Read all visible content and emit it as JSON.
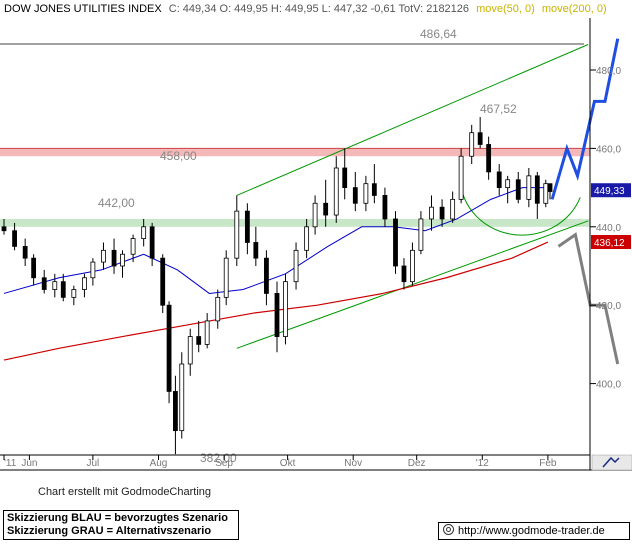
{
  "header": {
    "symbol": "DOW JONES UTILITIES INDEX",
    "quote": "C: 449,34 O: 449,95 H: 449,95 L: 447,32 -0,61 TotV: 2182126",
    "ma_short": "move(50, 0)",
    "ma_long": "move(200, 0)"
  },
  "colors": {
    "candles": "#000000",
    "ma50": "#0000cc",
    "ma200": "#cc0000",
    "channel": "#009900",
    "resistance_zone": "#f5b8b8",
    "support_zone": "#c8e6c8",
    "scenario_blue": "#1e4fe0",
    "scenario_grey": "#808080",
    "price_box": "#1a1aa8",
    "ma200_box": "#cc0000"
  },
  "chart_data": {
    "type": "candlestick",
    "x_labels": [
      "'11",
      "Jun",
      "Jul",
      "Aug",
      "Sep",
      "Okt",
      "Nov",
      "Dez",
      "'12",
      "Feb"
    ],
    "y_ticks": [
      400,
      420,
      440,
      460,
      480
    ],
    "ylim": [
      370,
      495
    ],
    "level_labels": [
      {
        "text": "486,64",
        "value": 486.64
      },
      {
        "text": "467,52",
        "value": 467.52
      },
      {
        "text": "458,00",
        "value": 458.0
      },
      {
        "text": "442,00",
        "value": 442.0
      },
      {
        "text": "382,00",
        "value": 382.0
      }
    ],
    "horizontal_line": 486.64,
    "resistance_zone": [
      458.0,
      460.0
    ],
    "support_zone": [
      440.0,
      442.0
    ],
    "last_price": {
      "text": "449,33",
      "value": 449.33
    },
    "ma200_last": {
      "text": "436,12",
      "value": 436.12
    },
    "channel": {
      "upper": [
        {
          "date": "2011-09-07",
          "y": 448
        },
        {
          "date": "2012-02-20",
          "y": 486.5
        }
      ],
      "lower": [
        {
          "date": "2011-09-07",
          "y": 409
        },
        {
          "date": "2012-02-20",
          "y": 441.5
        }
      ]
    },
    "ma50": [
      {
        "date": "2011-05-20",
        "y": 423
      },
      {
        "date": "2011-06-15",
        "y": 427
      },
      {
        "date": "2011-07-05",
        "y": 429
      },
      {
        "date": "2011-07-25",
        "y": 433
      },
      {
        "date": "2011-08-10",
        "y": 429
      },
      {
        "date": "2011-08-25",
        "y": 423
      },
      {
        "date": "2011-09-10",
        "y": 424
      },
      {
        "date": "2011-09-30",
        "y": 428
      },
      {
        "date": "2011-10-20",
        "y": 435
      },
      {
        "date": "2011-11-05",
        "y": 440
      },
      {
        "date": "2011-11-20",
        "y": 440
      },
      {
        "date": "2011-12-05",
        "y": 439
      },
      {
        "date": "2011-12-20",
        "y": 442
      },
      {
        "date": "2012-01-05",
        "y": 447
      },
      {
        "date": "2012-01-20",
        "y": 450
      },
      {
        "date": "2012-02-01",
        "y": 450
      }
    ],
    "ma200": [
      {
        "date": "2011-05-20",
        "y": 406
      },
      {
        "date": "2011-06-15",
        "y": 409
      },
      {
        "date": "2011-07-15",
        "y": 412
      },
      {
        "date": "2011-08-15",
        "y": 415
      },
      {
        "date": "2011-09-15",
        "y": 418
      },
      {
        "date": "2011-10-15",
        "y": 420
      },
      {
        "date": "2011-11-15",
        "y": 423
      },
      {
        "date": "2011-12-15",
        "y": 427
      },
      {
        "date": "2012-01-15",
        "y": 432
      },
      {
        "date": "2012-02-01",
        "y": 436.1
      }
    ],
    "arc_center": {
      "date": "2012-01-18",
      "y": 446
    },
    "scenario_blue": [
      {
        "date": "2012-02-03",
        "y": 447
      },
      {
        "date": "2012-02-10",
        "y": 460
      },
      {
        "date": "2012-02-15",
        "y": 453
      },
      {
        "date": "2012-02-23",
        "y": 472
      },
      {
        "date": "2012-02-28",
        "y": 472
      },
      {
        "date": "2012-03-05",
        "y": 488
      }
    ],
    "scenario_grey": [
      {
        "date": "2012-02-06",
        "y": 435
      },
      {
        "date": "2012-02-14",
        "y": 438
      },
      {
        "date": "2012-02-21",
        "y": 420
      },
      {
        "date": "2012-02-28",
        "y": 420
      },
      {
        "date": "2012-03-05",
        "y": 405
      }
    ],
    "candles": [
      {
        "date": "2011-05-20",
        "o": 440,
        "h": 442,
        "l": 438,
        "c": 439
      },
      {
        "date": "2011-05-25",
        "o": 439,
        "h": 441,
        "l": 434,
        "c": 435
      },
      {
        "date": "2011-05-30",
        "o": 435,
        "h": 437,
        "l": 430,
        "c": 432
      },
      {
        "date": "2011-06-03",
        "o": 432,
        "h": 433,
        "l": 425,
        "c": 427
      },
      {
        "date": "2011-06-08",
        "o": 427,
        "h": 429,
        "l": 423,
        "c": 424
      },
      {
        "date": "2011-06-13",
        "o": 424,
        "h": 428,
        "l": 422,
        "c": 426
      },
      {
        "date": "2011-06-17",
        "o": 426,
        "h": 428,
        "l": 421,
        "c": 422
      },
      {
        "date": "2011-06-22",
        "o": 422,
        "h": 425,
        "l": 420,
        "c": 424
      },
      {
        "date": "2011-06-27",
        "o": 424,
        "h": 428,
        "l": 422,
        "c": 427
      },
      {
        "date": "2011-07-01",
        "o": 427,
        "h": 432,
        "l": 425,
        "c": 431
      },
      {
        "date": "2011-07-06",
        "o": 431,
        "h": 436,
        "l": 429,
        "c": 434
      },
      {
        "date": "2011-07-11",
        "o": 434,
        "h": 437,
        "l": 428,
        "c": 430
      },
      {
        "date": "2011-07-15",
        "o": 430,
        "h": 434,
        "l": 427,
        "c": 433
      },
      {
        "date": "2011-07-20",
        "o": 433,
        "h": 438,
        "l": 431,
        "c": 437
      },
      {
        "date": "2011-07-25",
        "o": 437,
        "h": 442,
        "l": 435,
        "c": 440
      },
      {
        "date": "2011-07-29",
        "o": 440,
        "h": 441,
        "l": 430,
        "c": 432
      },
      {
        "date": "2011-08-03",
        "o": 432,
        "h": 433,
        "l": 418,
        "c": 420
      },
      {
        "date": "2011-08-06",
        "o": 420,
        "h": 421,
        "l": 395,
        "c": 398
      },
      {
        "date": "2011-08-09",
        "o": 398,
        "h": 402,
        "l": 382,
        "c": 388
      },
      {
        "date": "2011-08-12",
        "o": 388,
        "h": 408,
        "l": 386,
        "c": 405
      },
      {
        "date": "2011-08-16",
        "o": 405,
        "h": 414,
        "l": 402,
        "c": 412
      },
      {
        "date": "2011-08-20",
        "o": 412,
        "h": 416,
        "l": 408,
        "c": 410
      },
      {
        "date": "2011-08-24",
        "o": 410,
        "h": 418,
        "l": 409,
        "c": 416
      },
      {
        "date": "2011-08-29",
        "o": 416,
        "h": 424,
        "l": 414,
        "c": 422
      },
      {
        "date": "2011-09-02",
        "o": 422,
        "h": 434,
        "l": 420,
        "c": 432
      },
      {
        "date": "2011-09-07",
        "o": 432,
        "h": 448,
        "l": 430,
        "c": 444
      },
      {
        "date": "2011-09-12",
        "o": 444,
        "h": 446,
        "l": 433,
        "c": 436
      },
      {
        "date": "2011-09-16",
        "o": 436,
        "h": 440,
        "l": 430,
        "c": 432
      },
      {
        "date": "2011-09-21",
        "o": 432,
        "h": 434,
        "l": 420,
        "c": 423
      },
      {
        "date": "2011-09-26",
        "o": 423,
        "h": 426,
        "l": 408,
        "c": 412
      },
      {
        "date": "2011-09-30",
        "o": 412,
        "h": 428,
        "l": 410,
        "c": 426
      },
      {
        "date": "2011-10-05",
        "o": 426,
        "h": 436,
        "l": 424,
        "c": 434
      },
      {
        "date": "2011-10-10",
        "o": 434,
        "h": 442,
        "l": 432,
        "c": 440
      },
      {
        "date": "2011-10-14",
        "o": 440,
        "h": 448,
        "l": 438,
        "c": 446
      },
      {
        "date": "2011-10-19",
        "o": 446,
        "h": 452,
        "l": 440,
        "c": 443
      },
      {
        "date": "2011-10-24",
        "o": 443,
        "h": 458,
        "l": 441,
        "c": 455
      },
      {
        "date": "2011-10-28",
        "o": 455,
        "h": 460,
        "l": 447,
        "c": 450
      },
      {
        "date": "2011-11-02",
        "o": 450,
        "h": 454,
        "l": 444,
        "c": 446
      },
      {
        "date": "2011-11-07",
        "o": 446,
        "h": 453,
        "l": 444,
        "c": 451
      },
      {
        "date": "2011-11-11",
        "o": 451,
        "h": 456,
        "l": 446,
        "c": 448
      },
      {
        "date": "2011-11-16",
        "o": 448,
        "h": 450,
        "l": 440,
        "c": 442
      },
      {
        "date": "2011-11-21",
        "o": 442,
        "h": 444,
        "l": 428,
        "c": 430
      },
      {
        "date": "2011-11-25",
        "o": 430,
        "h": 432,
        "l": 424,
        "c": 426
      },
      {
        "date": "2011-11-29",
        "o": 426,
        "h": 436,
        "l": 425,
        "c": 434
      },
      {
        "date": "2011-12-03",
        "o": 434,
        "h": 444,
        "l": 433,
        "c": 442
      },
      {
        "date": "2011-12-08",
        "o": 442,
        "h": 448,
        "l": 439,
        "c": 445
      },
      {
        "date": "2011-12-13",
        "o": 445,
        "h": 447,
        "l": 440,
        "c": 442
      },
      {
        "date": "2011-12-18",
        "o": 442,
        "h": 449,
        "l": 441,
        "c": 447
      },
      {
        "date": "2011-12-22",
        "o": 447,
        "h": 460,
        "l": 446,
        "c": 458
      },
      {
        "date": "2011-12-27",
        "o": 458,
        "h": 466,
        "l": 456,
        "c": 464
      },
      {
        "date": "2011-12-31",
        "o": 464,
        "h": 468,
        "l": 460,
        "c": 461
      },
      {
        "date": "2012-01-04",
        "o": 461,
        "h": 463,
        "l": 452,
        "c": 454
      },
      {
        "date": "2012-01-09",
        "o": 454,
        "h": 456,
        "l": 448,
        "c": 450
      },
      {
        "date": "2012-01-13",
        "o": 450,
        "h": 453,
        "l": 446,
        "c": 452
      },
      {
        "date": "2012-01-18",
        "o": 452,
        "h": 454,
        "l": 446,
        "c": 447
      },
      {
        "date": "2012-01-23",
        "o": 447,
        "h": 455,
        "l": 445,
        "c": 453
      },
      {
        "date": "2012-01-27",
        "o": 453,
        "h": 454,
        "l": 442,
        "c": 446
      },
      {
        "date": "2012-01-31",
        "o": 446,
        "h": 452,
        "l": 445,
        "c": 451
      },
      {
        "date": "2012-02-02",
        "o": 451,
        "h": 451,
        "l": 447,
        "c": 449
      }
    ]
  },
  "footer": {
    "caption": "Chart erstellt mit GodmodeCharting",
    "legend_blue": "Skizzierung BLAU = bevorzugtes Szenario",
    "legend_grey": "Skizzierung GRAU = Alternativszenario",
    "site": "http://www.godmode-trader.de"
  }
}
